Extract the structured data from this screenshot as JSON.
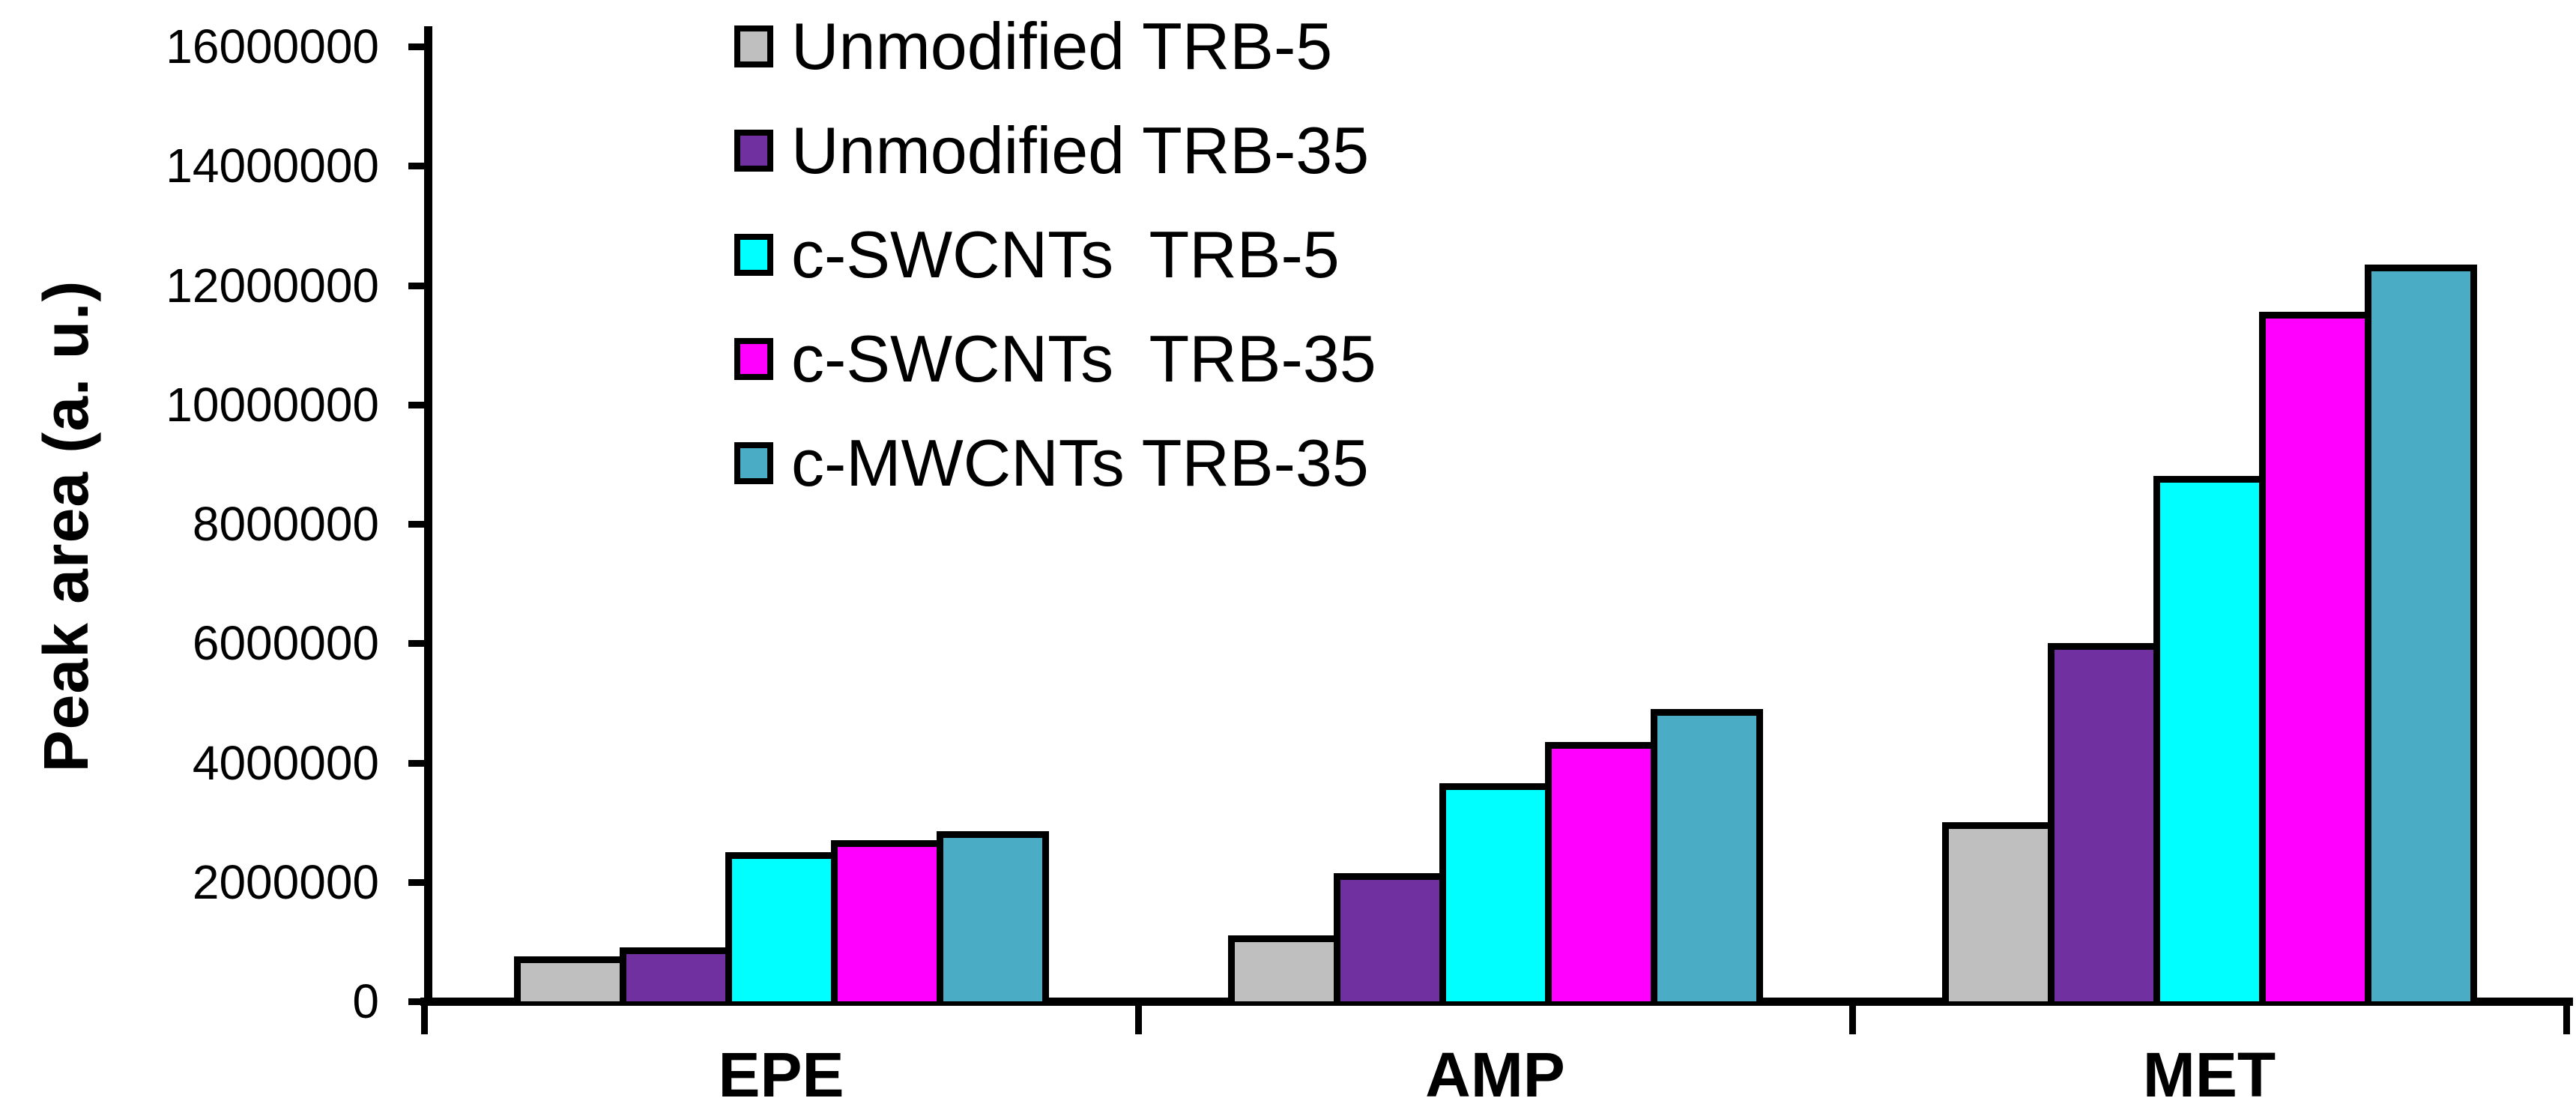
{
  "chart_data": {
    "type": "bar",
    "title": "",
    "xlabel": "",
    "ylabel": "Peak area (a. u.)",
    "categories": [
      "EPE",
      "AMP",
      "MET"
    ],
    "series": [
      {
        "name": "Unmodified TRB-5",
        "color": "#BFBFBF",
        "values": [
          750000,
          1100000,
          3000000
        ]
      },
      {
        "name": "Unmodified TRB-35",
        "color": "#7030A0",
        "values": [
          900000,
          2150000,
          6000000
        ]
      },
      {
        "name": "c-SWCNTs  TRB-5",
        "color": "#00FFFF",
        "values": [
          2500000,
          3650000,
          8800000
        ]
      },
      {
        "name": "c-SWCNTs  TRB-35",
        "color": "#FF00FF",
        "values": [
          2700000,
          4350000,
          11550000
        ]
      },
      {
        "name": "c-MWCNTs TRB-35",
        "color": "#4BACC6",
        "values": [
          2850000,
          4900000,
          12350000
        ]
      }
    ],
    "y_axis": {
      "min": 0,
      "max": 16000000,
      "tick_interval": 2000000,
      "tick_labels": [
        "0",
        "2000000",
        "4000000",
        "6000000",
        "8000000",
        "10000000",
        "12000000",
        "14000000",
        "16000000"
      ]
    },
    "legend_position": "top-inside-left",
    "grid": false,
    "bar_border_color": "#000000",
    "background_color": "#FFFFFF",
    "text_color": "#000000"
  }
}
